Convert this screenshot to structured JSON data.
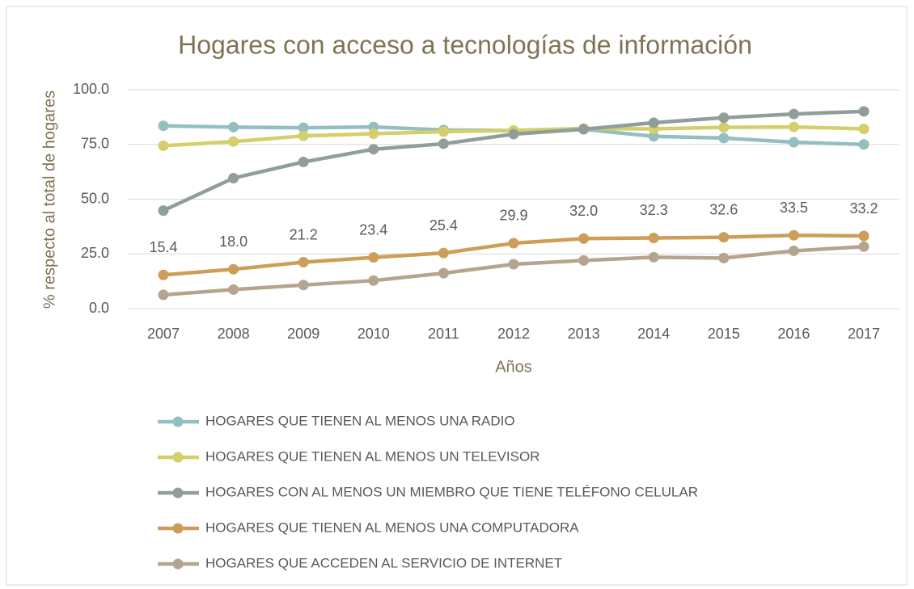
{
  "chart_data": {
    "type": "line",
    "title": "Hogares con acceso a tecnologías de información",
    "x_label": "Años",
    "y_label": "% respecto al total de hogares",
    "categories": [
      "2007",
      "2008",
      "2009",
      "2010",
      "2011",
      "2012",
      "2013",
      "2014",
      "2015",
      "2016",
      "2017"
    ],
    "ylim": [
      0,
      100
    ],
    "yticks": [
      {
        "value": 0,
        "label": "0.0"
      },
      {
        "value": 25,
        "label": "25.0"
      },
      {
        "value": 50,
        "label": "50.0"
      },
      {
        "value": 75,
        "label": "75.0"
      },
      {
        "value": 100,
        "label": "100.0"
      }
    ],
    "grid": true,
    "legend": "bottom",
    "series": [
      {
        "name": "HOGARES QUE TIENEN AL MENOS UNA RADIO",
        "color": "#94bfc0",
        "values": [
          83.5,
          82.9,
          82.6,
          83.0,
          81.6,
          81.3,
          81.9,
          78.7,
          77.9,
          76.0,
          75.0
        ]
      },
      {
        "name": "HOGARES QUE TIENEN AL MENOS UN TELEVISOR",
        "color": "#d4ce6b",
        "values": [
          74.4,
          76.3,
          78.9,
          79.9,
          80.8,
          81.4,
          82.3,
          82.1,
          82.8,
          83.0,
          82.1
        ]
      },
      {
        "name": "HOGARES CON AL MENOS UN MIEMBRO QUE TIENE TELÉFONO CELULAR",
        "color": "#8f9e98",
        "values": [
          44.8,
          59.6,
          67.0,
          72.8,
          75.3,
          79.7,
          81.9,
          84.9,
          87.2,
          88.9,
          90.1
        ]
      },
      {
        "name": "HOGARES QUE TIENEN AL MENOS UNA COMPUTADORA",
        "color": "#cc9e58",
        "values": [
          15.4,
          18.0,
          21.2,
          23.4,
          25.4,
          29.9,
          32.0,
          32.3,
          32.6,
          33.5,
          33.2
        ],
        "value_labels": [
          "15.4",
          "18.0",
          "21.2",
          "23.4",
          "25.4",
          "29.9",
          "32.0",
          "32.3",
          "32.6",
          "33.5",
          "33.2"
        ]
      },
      {
        "name": "HOGARES QUE ACCEDEN AL SERVICIO DE INTERNET",
        "color": "#b5a48f",
        "values": [
          6.3,
          8.7,
          10.8,
          12.8,
          16.2,
          20.3,
          22.0,
          23.5,
          23.1,
          26.4,
          28.3
        ]
      }
    ]
  }
}
